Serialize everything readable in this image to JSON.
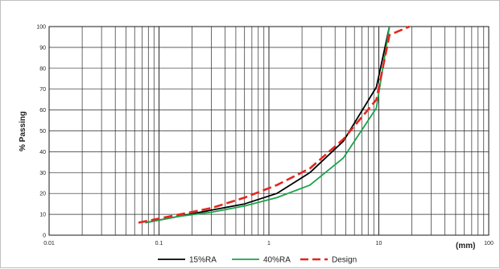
{
  "chart_data": {
    "type": "line",
    "title": "",
    "xlabel": "(mm)",
    "ylabel": "% Passing",
    "x_scale": "log",
    "xlim": [
      0.01,
      100
    ],
    "ylim": [
      0,
      100
    ],
    "grid": true,
    "legend_position": "bottom",
    "x_tick_labels": [
      "0.01",
      "0.1",
      "1",
      "10",
      "100"
    ],
    "y_tick_labels": [
      "0",
      "10",
      "20",
      "30",
      "40",
      "50",
      "60",
      "70",
      "80",
      "90",
      "100"
    ],
    "series": [
      {
        "name": "15%RA",
        "color": "#000000",
        "dash": "solid",
        "x": [
          0.075,
          0.15,
          0.3,
          0.6,
          1.18,
          2.36,
          4.75,
          9.5,
          12.5
        ],
        "y": [
          6,
          9,
          12,
          15,
          20,
          30,
          45,
          71,
          100
        ]
      },
      {
        "name": "40%RA",
        "color": "#1aa34a",
        "dash": "solid",
        "x": [
          0.075,
          0.15,
          0.3,
          0.6,
          1.18,
          2.36,
          4.75,
          9.5,
          12.5
        ],
        "y": [
          6,
          9,
          11,
          14,
          18,
          24,
          37,
          61,
          100
        ]
      },
      {
        "name": "Design",
        "color": "#e3261f",
        "dash": "dashed",
        "x": [
          0.065,
          0.3,
          0.6,
          1.18,
          2.36,
          4.75,
          9.5,
          12.5,
          19
        ],
        "y": [
          6,
          13,
          18,
          24,
          32,
          46,
          65,
          96,
          100
        ]
      }
    ]
  }
}
